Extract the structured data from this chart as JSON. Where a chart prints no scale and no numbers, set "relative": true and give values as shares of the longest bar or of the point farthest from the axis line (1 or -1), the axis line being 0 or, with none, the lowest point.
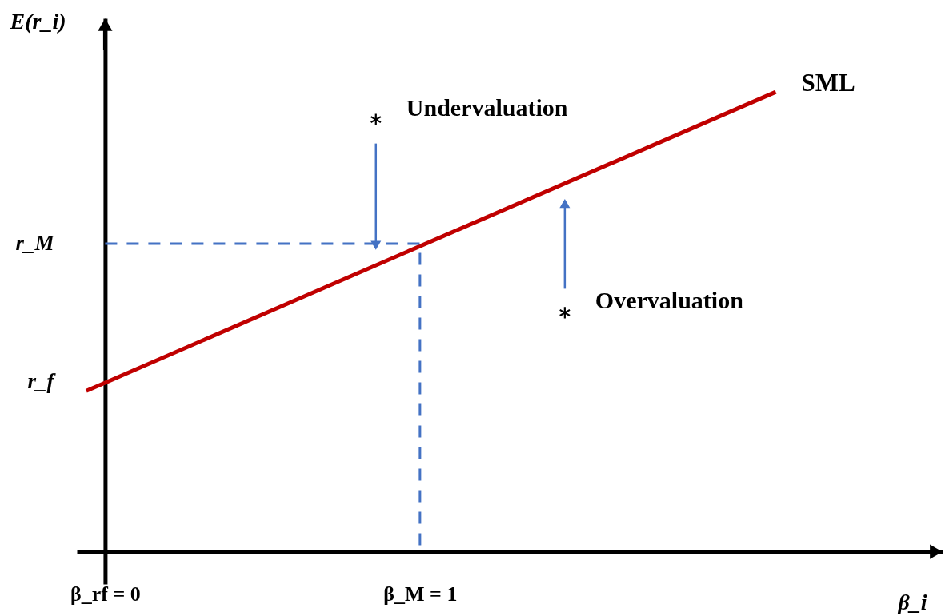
{
  "chart_data": {
    "type": "line",
    "relative": true,
    "xlabel": "β_i",
    "ylabel": "E(r_i)",
    "xlim": [
      -0.09,
      2.66
    ],
    "xticks": [
      {
        "value": 0,
        "label": "β_rf = 0"
      },
      {
        "value": 1,
        "label": "β_M = 1"
      }
    ],
    "series": [
      {
        "name": "SML",
        "color": "#c00000",
        "x": [
          -0.06,
          2.13
        ],
        "values": [
          0.35,
          1
        ]
      },
      {
        "type": "line",
        "color": "#4472c4",
        "line_style": "dashed",
        "x": [
          0,
          1,
          1
        ],
        "values": [
          0.67,
          0.67,
          0
        ]
      },
      {
        "type": "scatter",
        "color": "#000000",
        "marker": "cross",
        "x": [
          0.86,
          1.46
        ],
        "values": [
          0.94,
          0.52
        ]
      }
    ],
    "annotations": [
      {
        "text": "r_M",
        "x": 0,
        "y": 0.67
      },
      {
        "text": "r_f",
        "x": 0,
        "y": 0.37
      },
      "Undervaluation",
      "Overvaluation"
    ]
  }
}
